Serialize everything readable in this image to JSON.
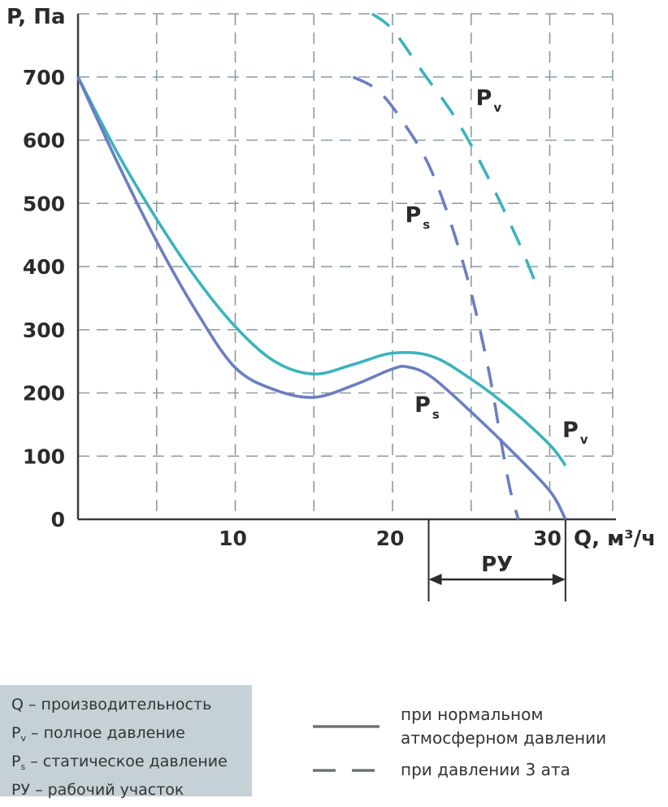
{
  "chart_data": {
    "type": "line",
    "xlabel": "Q, м³/ч",
    "ylabel": "P, Па",
    "xlim": [
      0,
      34
    ],
    "ylim": [
      0,
      800
    ],
    "x_ticks": [
      "10",
      "20",
      "30"
    ],
    "y_ticks": [
      "0",
      "100",
      "200",
      "300",
      "400",
      "500",
      "600",
      "700"
    ],
    "grid": true,
    "series": [
      {
        "name": "Pv",
        "condition": "при нормальном атмосферном давлении",
        "color": "#3ab3bd",
        "dash": false,
        "x": [
          0,
          2.5,
          5,
          7.5,
          10,
          12.5,
          15,
          17.5,
          20,
          22.5,
          25,
          27.5,
          30,
          31
        ],
        "y": [
          700,
          580,
          475,
          382,
          305,
          250,
          230,
          245,
          263,
          258,
          222,
          175,
          118,
          85
        ]
      },
      {
        "name": "Ps",
        "condition": "при нормальном атмосферном давлении",
        "color": "#6b7ec1",
        "dash": false,
        "x": [
          0,
          2.5,
          5,
          7.5,
          10,
          12.5,
          15,
          17.5,
          20,
          21,
          22.5,
          25,
          27.5,
          30,
          31
        ],
        "y": [
          700,
          565,
          440,
          330,
          240,
          205,
          193,
          212,
          238,
          241,
          225,
          170,
          110,
          45,
          0
        ]
      },
      {
        "name": "Pv",
        "condition": "при давлении 3 ата",
        "color": "#3ab3bd",
        "dash": true,
        "x": [
          18.7,
          20,
          22,
          24,
          26,
          28,
          29
        ],
        "y": [
          800,
          775,
          705,
          635,
          545,
          440,
          380
        ]
      },
      {
        "name": "Ps",
        "condition": "при давлении 3 ата",
        "color": "#6b7ec1",
        "dash": true,
        "x": [
          17.5,
          19,
          20.5,
          22.5,
          24.5,
          26,
          27,
          27.5,
          28
        ],
        "y": [
          700,
          680,
          635,
          550,
          405,
          250,
          110,
          45,
          0
        ]
      }
    ],
    "curve_labels": [
      {
        "main": "P",
        "sub": "v",
        "x": 25.3,
        "y": 655
      },
      {
        "main": "P",
        "sub": "s",
        "x": 20.8,
        "y": 470
      },
      {
        "main": "P",
        "sub": "s",
        "x": 21.4,
        "y": 170
      },
      {
        "main": "P",
        "sub": "v",
        "x": 30.8,
        "y": 130
      }
    ],
    "working_range": {
      "label": "РУ",
      "from": 22.3,
      "to": 31
    }
  },
  "legend_box": {
    "rows": [
      {
        "main": "Q",
        "sub": "",
        "text": " – производительность"
      },
      {
        "main": "P",
        "sub": "v",
        "text": " – полное давление"
      },
      {
        "main": "P",
        "sub": "s",
        "text": " – статическое давление"
      },
      {
        "main": "РУ",
        "sub": "",
        "text": " – рабочий участок"
      }
    ]
  },
  "line_legend": {
    "solid": {
      "text_line1": "при нормальном",
      "text_line2": "атмосферном давлении",
      "color": "#6f7377"
    },
    "dashed": {
      "text": "при давлении 3 ата",
      "color": "#6f7377"
    }
  }
}
